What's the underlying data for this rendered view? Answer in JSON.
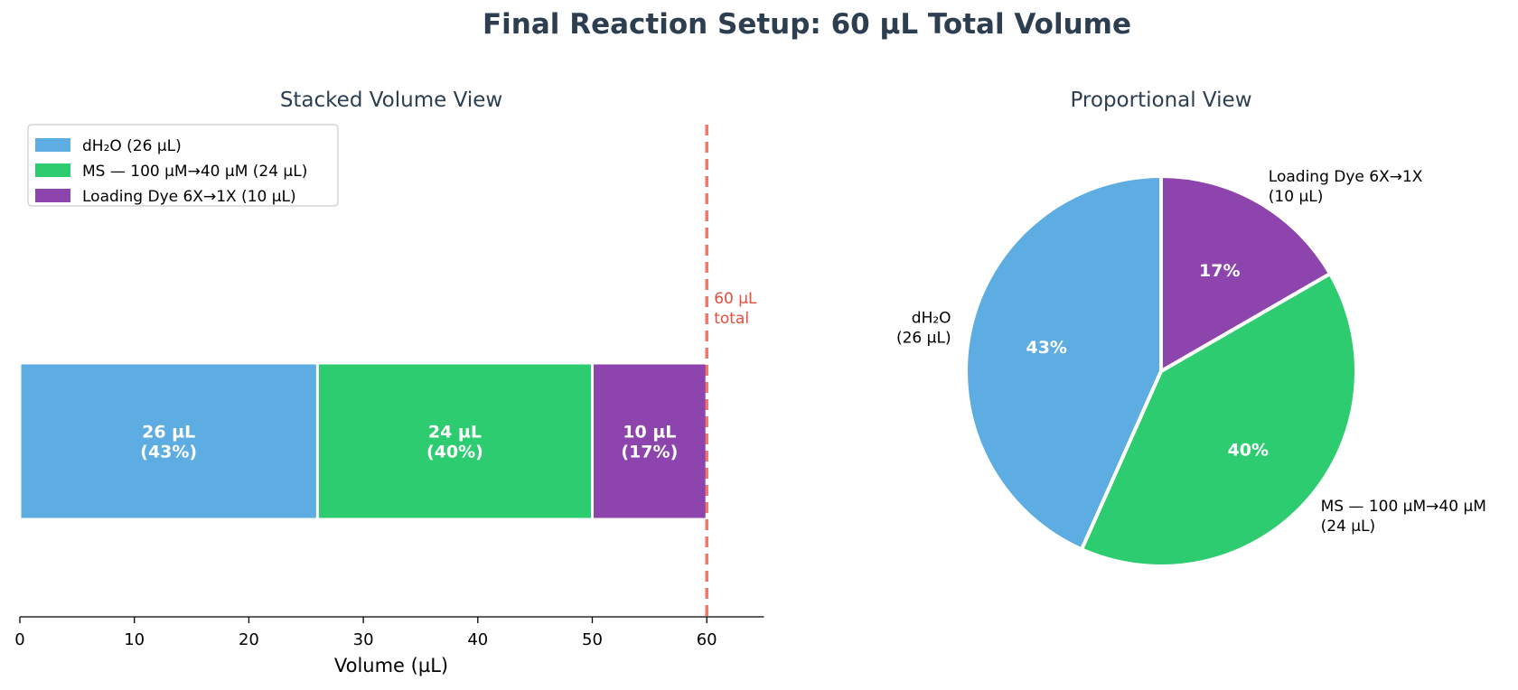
{
  "figure": {
    "title": "Final Reaction Setup: 60 µL Total Volume"
  },
  "colors": {
    "title": "#2c3e50",
    "reference_line": "#e74c3c"
  },
  "chart_data": [
    {
      "type": "bar",
      "orientation": "horizontal-stacked",
      "title": "Stacked Volume View",
      "xlabel": "Volume (µL)",
      "ylabel": "",
      "xlim": [
        0,
        65
      ],
      "xticks": [
        "0",
        "10",
        "20",
        "30",
        "40",
        "50",
        "60"
      ],
      "grid": false,
      "legend_position": "upper-left",
      "series": [
        {
          "name": "dH₂O (26 µL)",
          "value": 26,
          "percent": 43,
          "color": "#5dade2",
          "label_line1": "26 µL",
          "label_line2": "(43%)"
        },
        {
          "name": "MS — 100 µM→40 µM (24 µL)",
          "value": 24,
          "percent": 40,
          "color": "#2ecc71",
          "label_line1": "24 µL",
          "label_line2": "(40%)"
        },
        {
          "name": "Loading Dye 6X→1X (10 µL)",
          "value": 10,
          "percent": 17,
          "color": "#8e44ad",
          "label_line1": "10 µL",
          "label_line2": "(17%)"
        }
      ],
      "reference_line": {
        "value": 60,
        "label_line1": "60 µL",
        "label_line2": "total",
        "style": "dashed"
      }
    },
    {
      "type": "pie",
      "title": "Proportional View",
      "start_angle": "12 o'clock",
      "direction": "counterclockwise",
      "slices": [
        {
          "label_line1": "dH₂O",
          "label_line2": "(26 µL)",
          "value": 26,
          "percent_text": "43%",
          "color": "#5dade2",
          "label_align": "right"
        },
        {
          "label_line1": "MS — 100 µM→40 µM",
          "label_line2": "(24 µL)",
          "value": 24,
          "percent_text": "40%",
          "color": "#2ecc71",
          "label_align": "left"
        },
        {
          "label_line1": "Loading Dye 6X→1X",
          "label_line2": "(10 µL)",
          "value": 10,
          "percent_text": "17%",
          "color": "#8e44ad",
          "label_align": "left"
        }
      ]
    }
  ]
}
